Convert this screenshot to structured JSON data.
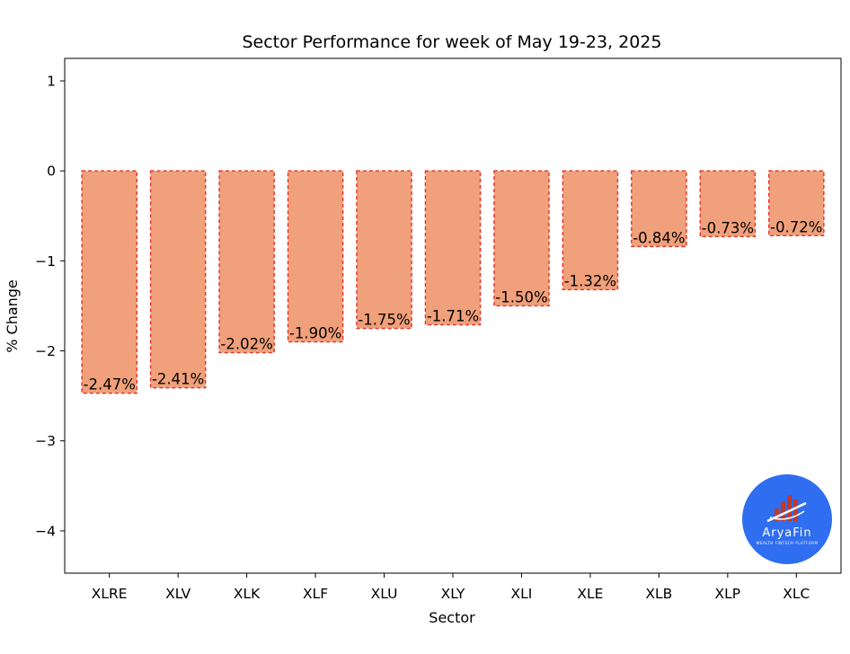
{
  "chart_data": {
    "type": "bar",
    "title": "Sector Performance for week of May 19-23, 2025",
    "xlabel": "Sector",
    "ylabel": "% Change",
    "categories": [
      "XLRE",
      "XLV",
      "XLK",
      "XLF",
      "XLU",
      "XLY",
      "XLI",
      "XLE",
      "XLB",
      "XLP",
      "XLC"
    ],
    "values": [
      -2.47,
      -2.41,
      -2.02,
      -1.9,
      -1.75,
      -1.71,
      -1.5,
      -1.32,
      -0.84,
      -0.73,
      -0.72
    ],
    "data_labels": [
      "-2.47%",
      "-2.41%",
      "-2.02%",
      "-1.90%",
      "-1.75%",
      "-1.71%",
      "-1.50%",
      "-1.32%",
      "-0.84%",
      "-0.73%",
      "-0.72%"
    ],
    "ylim": [
      -4.47,
      1.25
    ],
    "yticks": [
      1,
      0,
      -1,
      -2,
      -3,
      -4
    ],
    "ytick_labels": [
      "1",
      "0",
      "−1",
      "−2",
      "−3",
      "−4"
    ],
    "grid": false,
    "colors": {
      "bar_fill": "#f0a07a",
      "bar_edge": "#e8312a"
    }
  },
  "watermark": {
    "brand": "AryaFin",
    "tagline": "WEALTH FINTECH PLATFORM",
    "color": "#2f6ef0"
  }
}
